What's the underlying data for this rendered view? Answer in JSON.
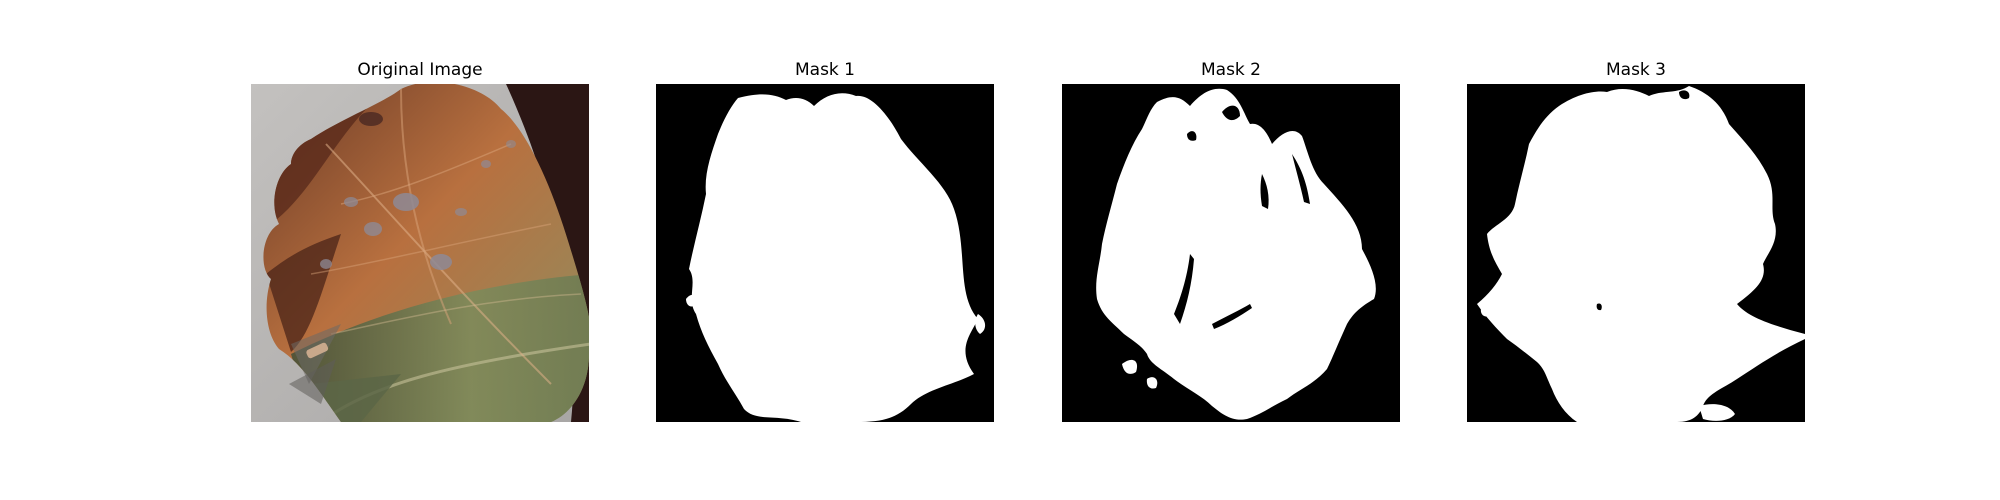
{
  "panels": [
    {
      "title": "Original Image"
    },
    {
      "title": "Mask 1"
    },
    {
      "title": "Mask 2"
    },
    {
      "title": "Mask 3"
    }
  ],
  "colors": {
    "background": "#ffffff",
    "mask_background": "#000000",
    "mask_foreground": "#ffffff",
    "photo_backdrop": "#b5b3b2",
    "leaf_rust": "#8a4a2e",
    "leaf_orange": "#b8703f",
    "leaf_green": "#7f8a5a",
    "leaf_dark_green": "#3f4a33",
    "leaf_lesion": "#8e8a95",
    "leaf_dark": "#2a1712"
  }
}
